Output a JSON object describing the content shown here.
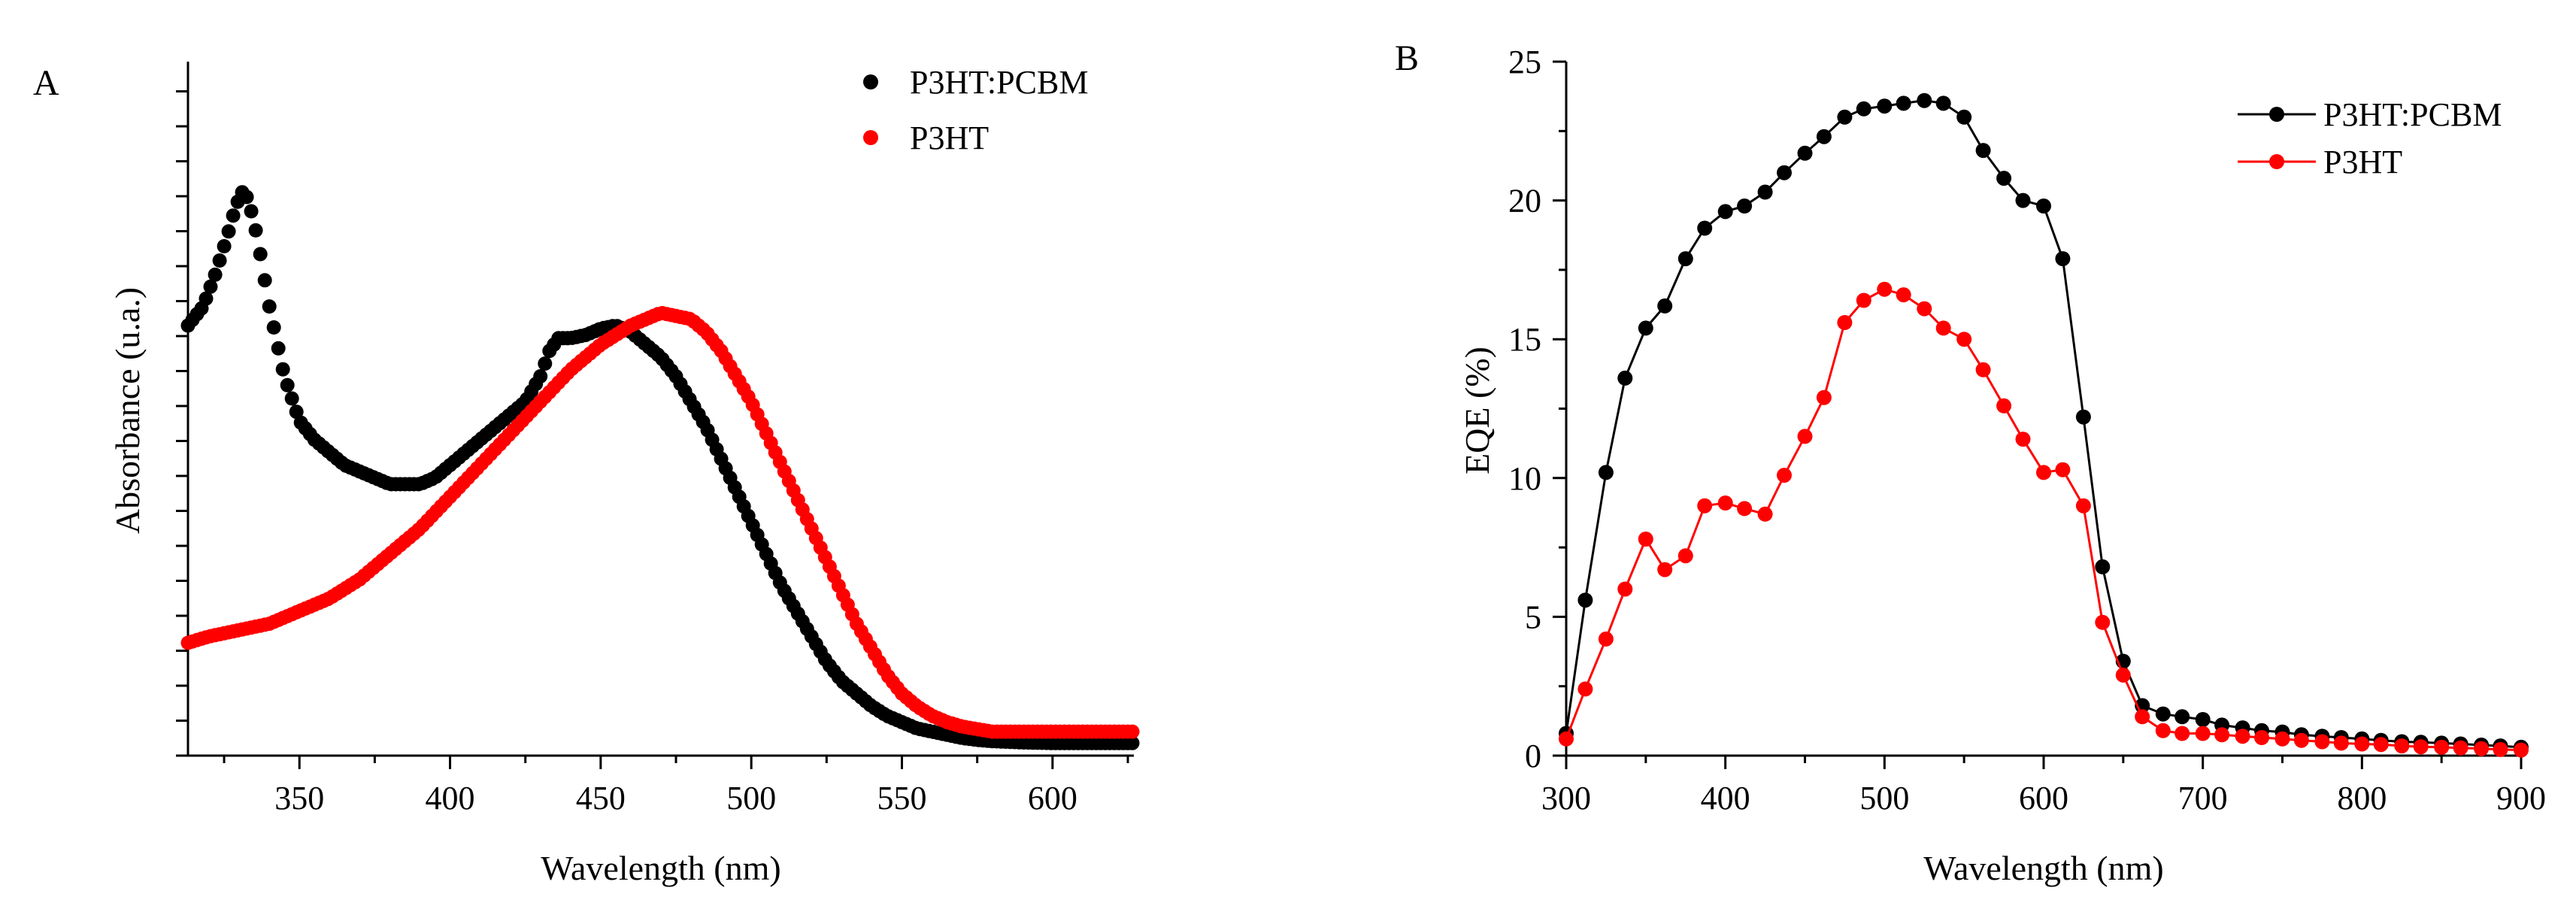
{
  "chart_data": [
    {
      "panel": "A",
      "type": "scatter",
      "title": "",
      "xlabel": "Wavelength (nm)",
      "ylabel": "Absorbance (u.a.)",
      "xlim": [
        313,
        627
      ],
      "ylim": [
        0,
        1.0
      ],
      "xticks": [
        350,
        400,
        450,
        500,
        550,
        600
      ],
      "y_tick_labels_shown": false,
      "legend": {
        "position": "top-right",
        "entries": [
          "P3HT:PCBM",
          "P3HT"
        ]
      },
      "colors": {
        "P3HT:PCBM": "#000000",
        "P3HT": "#ff0000"
      },
      "series": [
        {
          "name": "P3HT:PCBM",
          "color": "#000000",
          "points": [
            [
              313,
              0.66
            ],
            [
              318,
              0.69
            ],
            [
              322,
              0.74
            ],
            [
              326,
              0.8
            ],
            [
              329,
              0.85
            ],
            [
              331,
              0.87
            ],
            [
              333,
              0.86
            ],
            [
              336,
              0.8
            ],
            [
              340,
              0.69
            ],
            [
              345,
              0.58
            ],
            [
              350,
              0.51
            ],
            [
              355,
              0.48
            ],
            [
              360,
              0.46
            ],
            [
              365,
              0.44
            ],
            [
              370,
              0.43
            ],
            [
              375,
              0.42
            ],
            [
              380,
              0.41
            ],
            [
              385,
              0.41
            ],
            [
              390,
              0.41
            ],
            [
              395,
              0.42
            ],
            [
              400,
              0.44
            ],
            [
              405,
              0.46
            ],
            [
              410,
              0.48
            ],
            [
              415,
              0.5
            ],
            [
              420,
              0.52
            ],
            [
              425,
              0.54
            ],
            [
              430,
              0.58
            ],
            [
              433,
              0.62
            ],
            [
              436,
              0.64
            ],
            [
              440,
              0.64
            ],
            [
              445,
              0.645
            ],
            [
              450,
              0.655
            ],
            [
              455,
              0.66
            ],
            [
              460,
              0.65
            ],
            [
              465,
              0.63
            ],
            [
              470,
              0.61
            ],
            [
              475,
              0.58
            ],
            [
              480,
              0.54
            ],
            [
              485,
              0.5
            ],
            [
              490,
              0.45
            ],
            [
              495,
              0.4
            ],
            [
              500,
              0.35
            ],
            [
              505,
              0.3
            ],
            [
              510,
              0.25
            ],
            [
              515,
              0.21
            ],
            [
              520,
              0.17
            ],
            [
              525,
              0.13
            ],
            [
              530,
              0.1
            ],
            [
              535,
              0.08
            ],
            [
              540,
              0.06
            ],
            [
              545,
              0.045
            ],
            [
              550,
              0.035
            ],
            [
              555,
              0.025
            ],
            [
              560,
              0.02
            ],
            [
              565,
              0.015
            ],
            [
              570,
              0.01
            ],
            [
              575,
              0.007
            ],
            [
              580,
              0.005
            ],
            [
              590,
              0.003
            ],
            [
              600,
              0.002
            ],
            [
              610,
              0.002
            ],
            [
              620,
              0.002
            ],
            [
              627,
              0.002
            ]
          ]
        },
        {
          "name": "P3HT",
          "color": "#ff0000",
          "points": [
            [
              313,
              0.16
            ],
            [
              320,
              0.17
            ],
            [
              330,
              0.18
            ],
            [
              340,
              0.19
            ],
            [
              350,
              0.21
            ],
            [
              360,
              0.23
            ],
            [
              370,
              0.26
            ],
            [
              380,
              0.3
            ],
            [
              390,
              0.34
            ],
            [
              400,
              0.39
            ],
            [
              410,
              0.44
            ],
            [
              420,
              0.49
            ],
            [
              430,
              0.54
            ],
            [
              440,
              0.59
            ],
            [
              450,
              0.63
            ],
            [
              460,
              0.66
            ],
            [
              465,
              0.67
            ],
            [
              470,
              0.68
            ],
            [
              475,
              0.675
            ],
            [
              480,
              0.67
            ],
            [
              485,
              0.65
            ],
            [
              490,
              0.62
            ],
            [
              495,
              0.58
            ],
            [
              500,
              0.54
            ],
            [
              505,
              0.49
            ],
            [
              510,
              0.44
            ],
            [
              515,
              0.39
            ],
            [
              520,
              0.34
            ],
            [
              525,
              0.29
            ],
            [
              530,
              0.24
            ],
            [
              535,
              0.19
            ],
            [
              540,
              0.15
            ],
            [
              545,
              0.11
            ],
            [
              550,
              0.08
            ],
            [
              555,
              0.06
            ],
            [
              560,
              0.045
            ],
            [
              565,
              0.035
            ],
            [
              570,
              0.028
            ],
            [
              575,
              0.024
            ],
            [
              580,
              0.02
            ],
            [
              590,
              0.02
            ],
            [
              600,
              0.02
            ],
            [
              610,
              0.02
            ],
            [
              620,
              0.02
            ],
            [
              627,
              0.02
            ]
          ]
        }
      ]
    },
    {
      "panel": "B",
      "type": "line",
      "title": "",
      "xlabel": "Wavelength (nm)",
      "ylabel": "EQE (%)",
      "xlim": [
        300,
        900
      ],
      "ylim": [
        0,
        25
      ],
      "xticks": [
        300,
        400,
        500,
        600,
        700,
        800,
        900
      ],
      "yticks": [
        0,
        5,
        10,
        15,
        20,
        25
      ],
      "legend": {
        "position": "top-right",
        "entries": [
          "P3HT:PCBM",
          "P3HT"
        ]
      },
      "colors": {
        "P3HT:PCBM": "#000000",
        "P3HT": "#ff0000"
      },
      "series": [
        {
          "name": "P3HT:PCBM",
          "color": "#000000",
          "x": [
            300,
            312,
            325,
            337,
            350,
            362,
            375,
            387,
            400,
            412,
            425,
            437,
            450,
            462,
            475,
            487,
            500,
            512,
            525,
            537,
            550,
            562,
            575,
            587,
            600,
            612,
            625,
            637,
            650,
            662,
            675,
            687,
            700,
            712,
            725,
            737,
            750,
            762,
            775,
            787,
            800,
            812,
            825,
            837,
            850,
            862,
            875,
            887,
            900
          ],
          "y": [
            0.8,
            5.6,
            10.2,
            13.6,
            15.4,
            16.2,
            17.9,
            19.0,
            19.6,
            19.8,
            20.3,
            21.0,
            21.7,
            22.3,
            23.0,
            23.3,
            23.4,
            23.5,
            23.6,
            23.5,
            23.0,
            21.8,
            20.8,
            20.0,
            19.8,
            17.9,
            12.2,
            6.8,
            3.4,
            1.8,
            1.5,
            1.4,
            1.3,
            1.1,
            1.0,
            0.9,
            0.85,
            0.75,
            0.7,
            0.65,
            0.6,
            0.55,
            0.5,
            0.48,
            0.45,
            0.42,
            0.38,
            0.35,
            0.3
          ]
        },
        {
          "name": "P3HT",
          "color": "#ff0000",
          "x": [
            300,
            312,
            325,
            337,
            350,
            362,
            375,
            387,
            400,
            412,
            425,
            437,
            450,
            462,
            475,
            487,
            500,
            512,
            525,
            537,
            550,
            562,
            575,
            587,
            600,
            612,
            625,
            637,
            650,
            662,
            675,
            687,
            700,
            712,
            725,
            737,
            750,
            762,
            775,
            787,
            800,
            812,
            825,
            837,
            850,
            862,
            875,
            887,
            900
          ],
          "y": [
            0.6,
            2.4,
            4.2,
            6.0,
            7.8,
            6.7,
            7.2,
            9.0,
            9.1,
            8.9,
            8.7,
            10.1,
            11.5,
            12.9,
            15.6,
            16.4,
            16.8,
            16.6,
            16.1,
            15.4,
            15.0,
            13.9,
            12.6,
            11.4,
            10.2,
            10.3,
            9.0,
            4.8,
            2.9,
            1.4,
            0.9,
            0.8,
            0.8,
            0.75,
            0.7,
            0.65,
            0.6,
            0.55,
            0.5,
            0.45,
            0.42,
            0.4,
            0.35,
            0.32,
            0.3,
            0.28,
            0.25,
            0.22,
            0.2
          ]
        }
      ]
    }
  ]
}
